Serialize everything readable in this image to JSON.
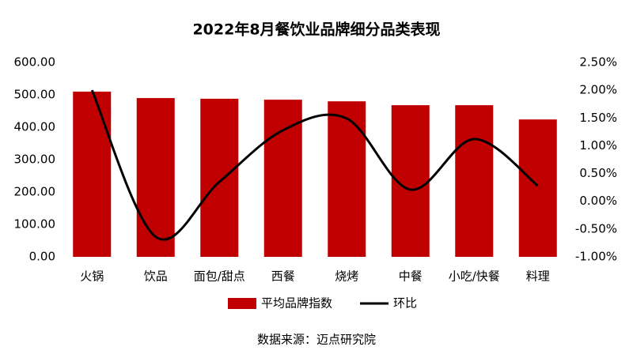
{
  "chart_data": {
    "type": "bar",
    "title": "2022年8月餐饮业品牌细分品类表现",
    "source": "数据来源：迈点研究院",
    "categories": [
      "火锅",
      "饮品",
      "面包/甜点",
      "西餐",
      "烧烤",
      "中餐",
      "小吃/快餐",
      "料理"
    ],
    "series": [
      {
        "name": "平均品牌指数",
        "type": "bar",
        "color": "#c00000",
        "values": [
          510,
          490,
          488,
          485,
          480,
          468,
          468,
          424
        ]
      },
      {
        "name": "环比",
        "type": "line",
        "axis": "y2",
        "color": "#000000",
        "values": [
          2.0,
          -0.64,
          0.35,
          1.28,
          1.49,
          0.21,
          1.12,
          0.28
        ]
      }
    ],
    "ylim": [
      0,
      600
    ],
    "yticks": [
      {
        "value": 0,
        "label": "0.00"
      },
      {
        "value": 100,
        "label": "100.00"
      },
      {
        "value": 200,
        "label": "200.00"
      },
      {
        "value": 300,
        "label": "300.00"
      },
      {
        "value": 400,
        "label": "400.00"
      },
      {
        "value": 500,
        "label": "500.00"
      },
      {
        "value": 600,
        "label": "600.00"
      }
    ],
    "y2lim": [
      -1.0,
      2.5
    ],
    "y2ticks": [
      {
        "value": -1.0,
        "label": "-1.00%"
      },
      {
        "value": -0.5,
        "label": "-0.50%"
      },
      {
        "value": 0,
        "label": "0.00%"
      },
      {
        "value": 0.5,
        "label": "0.50%"
      },
      {
        "value": 1.0,
        "label": "1.00%"
      },
      {
        "value": 1.5,
        "label": "1.50%"
      },
      {
        "value": 2.0,
        "label": "2.00%"
      },
      {
        "value": 2.5,
        "label": "2.50%"
      }
    ],
    "legend": "bottom"
  }
}
